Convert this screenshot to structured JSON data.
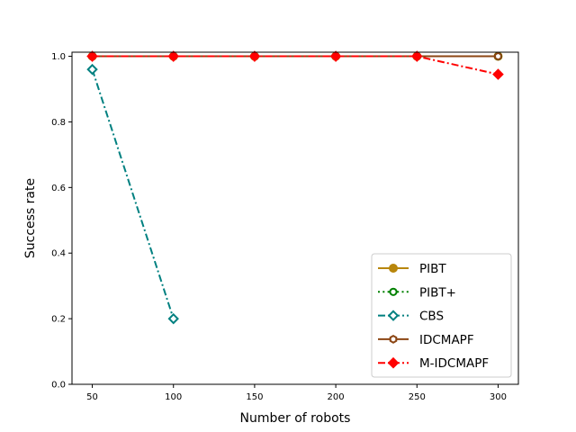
{
  "chart_data": {
    "type": "line",
    "xlabel": "Number of robots",
    "ylabel": "Success rate",
    "x": [
      50,
      100,
      150,
      200,
      250,
      300
    ],
    "xlim": [
      37.5,
      312.5
    ],
    "ylim": [
      0.0,
      1.0125
    ],
    "xticks": [
      "50",
      "100",
      "150",
      "200",
      "250",
      "300"
    ],
    "yticks": [
      "0.0",
      "0.2",
      "0.4",
      "0.6",
      "0.8",
      "1.0"
    ],
    "grid": false,
    "legend_position": "lower-right",
    "series": [
      {
        "name": "PIBT",
        "x": [
          50,
          100,
          150,
          200,
          250,
          300
        ],
        "values": [
          1.0,
          1.0,
          1.0,
          1.0,
          1.0,
          1.0
        ],
        "color": "#b8860b",
        "linestyle": "solid",
        "marker": "circle-filled"
      },
      {
        "name": "PIBT+",
        "x": [
          50,
          100,
          150,
          200,
          250,
          300
        ],
        "values": [
          1.0,
          1.0,
          1.0,
          1.0,
          1.0,
          1.0
        ],
        "color": "#008000",
        "linestyle": "dotted",
        "marker": "circle-open"
      },
      {
        "name": "CBS",
        "x": [
          50,
          100
        ],
        "values": [
          0.96,
          0.2
        ],
        "color": "#008080",
        "linestyle": "dashdot",
        "marker": "diamond-open"
      },
      {
        "name": "IDCMAPF",
        "x": [
          50,
          100,
          150,
          200,
          250,
          300
        ],
        "values": [
          1.0,
          1.0,
          1.0,
          1.0,
          1.0,
          1.0
        ],
        "color": "#8b4513",
        "linestyle": "solid",
        "marker": "hexagon-open"
      },
      {
        "name": "M-IDCMAPF",
        "x": [
          50,
          100,
          150,
          200,
          250,
          300
        ],
        "values": [
          1.0,
          1.0,
          1.0,
          1.0,
          1.0,
          0.945
        ],
        "color": "#ff0000",
        "linestyle": "dashdot",
        "marker": "diamond-filled"
      }
    ]
  }
}
